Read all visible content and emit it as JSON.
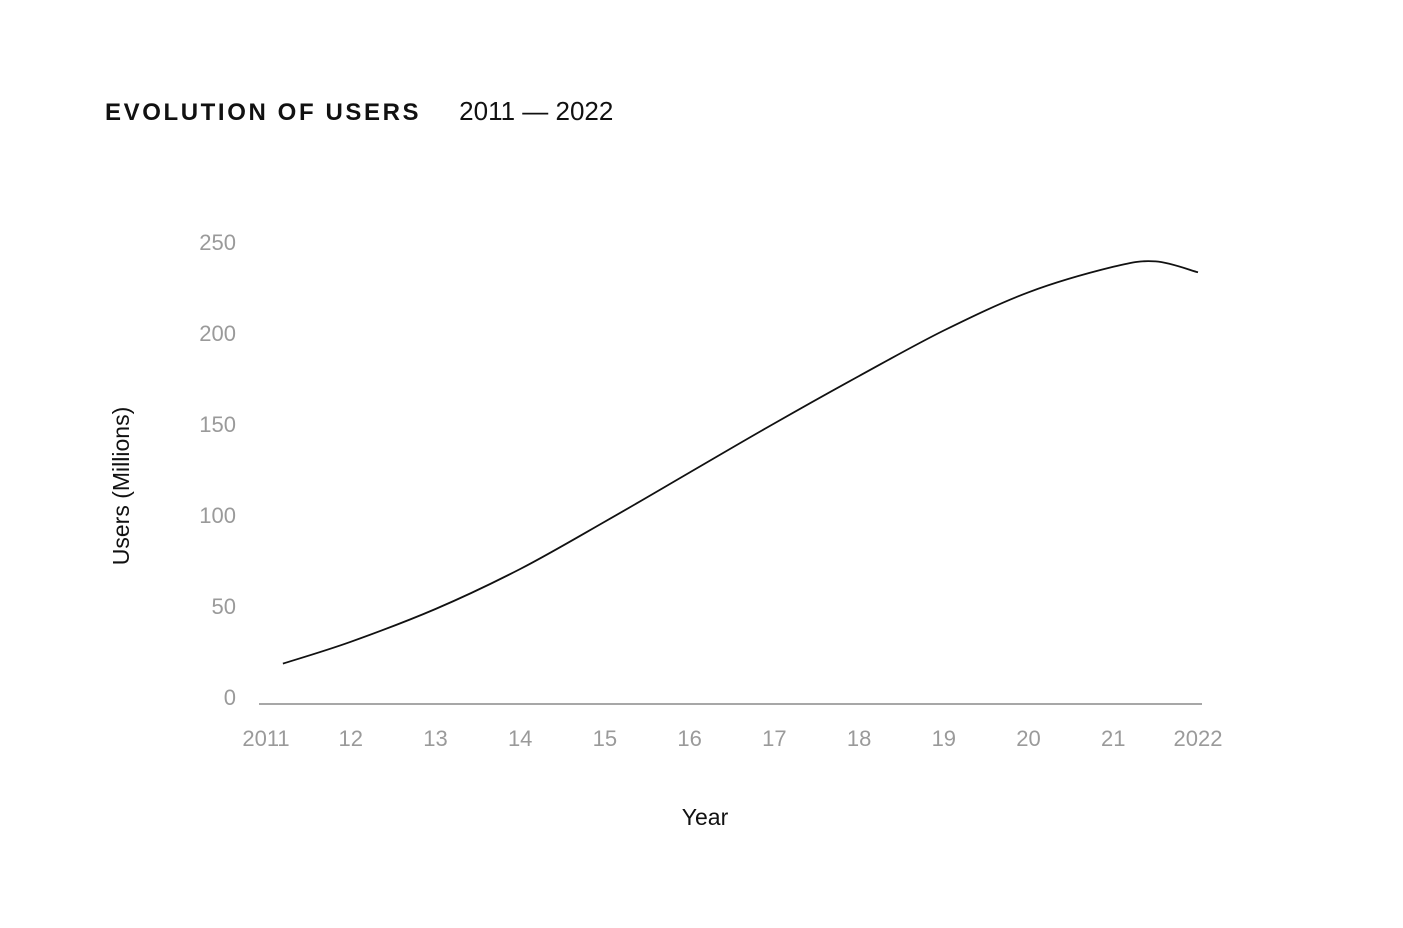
{
  "header": {
    "title": "EVOLUTION OF USERS",
    "subtitle": "2011 — 2022"
  },
  "chart_data": {
    "type": "line",
    "title": "EVOLUTION OF USERS",
    "subtitle": "2011 — 2022",
    "xlabel": "Year",
    "ylabel": "Users (Millions)",
    "x_tick_labels": [
      "2011",
      "12",
      "13",
      "14",
      "15",
      "16",
      "17",
      "18",
      "19",
      "20",
      "21",
      "2022"
    ],
    "y_ticks": [
      0,
      50,
      100,
      150,
      200,
      250
    ],
    "xlim": [
      2011,
      2022
    ],
    "ylim": [
      0,
      250
    ],
    "grid": false,
    "series": [
      {
        "x": [
          2011.2,
          2012,
          2013,
          2014,
          2015,
          2016,
          2017,
          2018,
          2019,
          2020,
          2021,
          2021.5,
          2022
        ],
        "values": [
          20,
          32,
          50,
          72,
          98,
          125,
          152,
          178,
          203,
          224,
          238,
          241,
          235
        ]
      }
    ],
    "colors": {
      "line": "#111111",
      "axis": "#8a8a8a",
      "tick_text": "#9a9a9a"
    }
  }
}
